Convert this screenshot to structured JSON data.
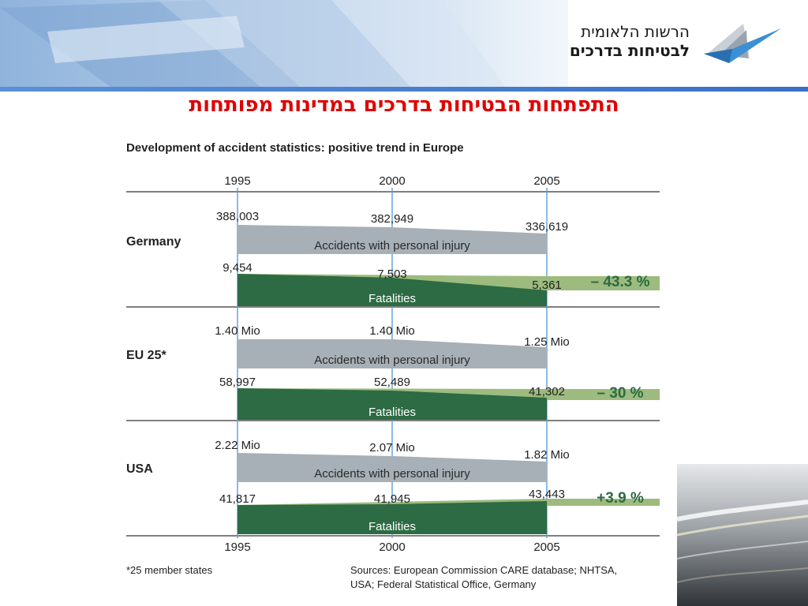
{
  "slide": {
    "title": "התפתחות הבטיחות בדרכים במדינות מפותחות",
    "logo": {
      "line1": "הרשות הלאומית",
      "line2": "לבטיחות בדרכים",
      "mark_icon": "checkmark-triangle-logo-icon"
    },
    "header_icon": "header-banner-graphic",
    "corner_icon": "road-lights-photo-graphic"
  },
  "chart_data": {
    "type": "area",
    "title": "Development of accident statistics: positive trend in Europe",
    "x": [
      "1995",
      "2000",
      "2005"
    ],
    "x_axis_labels": [
      "1995",
      "2000",
      "2005"
    ],
    "footnote": "*25 member states",
    "sources": "Sources: European Commission CARE database; NHTSA, USA; Federal Statistical Office, Germany",
    "colors": {
      "accidents": "#a7b0b6",
      "fatalities": "#2c6b43",
      "trend": "#9dbb7e",
      "gridline": "#5aa0d8"
    },
    "groups": [
      {
        "name": "Germany",
        "accidents": {
          "label": "Accidents with personal injury",
          "values": [
            388003,
            382949,
            336619
          ],
          "value_labels": [
            "388,003",
            "382,949",
            "336,619"
          ]
        },
        "fatalities": {
          "label": "Fatalities",
          "values": [
            9454,
            7503,
            5361
          ],
          "value_labels": [
            "9,454",
            "7,503",
            "5,361"
          ]
        },
        "change": "– 43.3 %"
      },
      {
        "name": "EU 25*",
        "accidents": {
          "label": "Accidents with personal injury",
          "values": [
            1.4,
            1.4,
            1.25
          ],
          "value_labels": [
            "1.40 Mio",
            "1.40 Mio",
            "1.25 Mio"
          ]
        },
        "fatalities": {
          "label": "Fatalities",
          "values": [
            58997,
            52489,
            41302
          ],
          "value_labels": [
            "58,997",
            "52,489",
            "41,302"
          ]
        },
        "change": "– 30 %"
      },
      {
        "name": "USA",
        "accidents": {
          "label": "Accidents with personal injury",
          "values": [
            2.22,
            2.07,
            1.82
          ],
          "value_labels": [
            "2.22 Mio",
            "2.07 Mio",
            "1.82 Mio"
          ]
        },
        "fatalities": {
          "label": "Fatalities",
          "values": [
            41817,
            41945,
            43443
          ],
          "value_labels": [
            "41,817",
            "41,945",
            "43,443"
          ]
        },
        "change": "+3.9 %"
      }
    ]
  }
}
